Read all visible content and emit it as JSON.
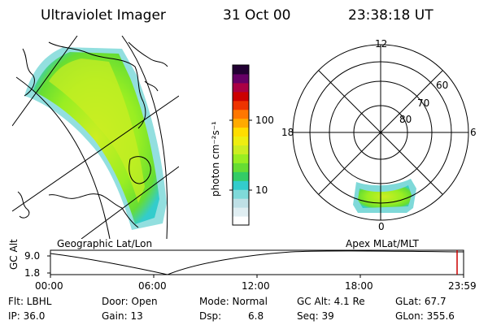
{
  "header": {
    "title": "Ultraviolet Imager",
    "date": "31 Oct 00",
    "time": "23:38:18 UT"
  },
  "colorbar": {
    "unit_label": "photon cm⁻²s⁻¹",
    "tick_high": "100",
    "tick_low": "10",
    "colors": [
      "#ffffff",
      "#e0eef2",
      "#bfe0e6",
      "#7fd9d9",
      "#33cccc",
      "#33cc66",
      "#66dd33",
      "#99ee22",
      "#ccee22",
      "#eeee11",
      "#ffdd00",
      "#ffaa00",
      "#ff7700",
      "#ee3300",
      "#cc0000",
      "#aa0044",
      "#660066",
      "#220033"
    ]
  },
  "geo_panel": {
    "label": "Geographic Lat/Lon"
  },
  "polar_panel": {
    "label": "Apex MLat/MLT",
    "mlt_labels": {
      "top": "12",
      "right": "6",
      "bottom": "0",
      "left": "18"
    },
    "lat_labels": [
      "60",
      "70",
      "80"
    ]
  },
  "timeline": {
    "ylabel": "GC Alt",
    "ytick_top": "9.0",
    "ytick_bottom": "1.8",
    "xticks": [
      "00:00",
      "06:00",
      "12:00",
      "18:00",
      "23:59"
    ],
    "marker_color": "#cc0000"
  },
  "info": {
    "filter": "Flt: LBHL",
    "door": "Door: Open",
    "mode": "Mode: Normal",
    "gc_alt": "GC Alt: 4.1 Re",
    "glat": "GLat: 67.7",
    "ip": "IP: 36.0",
    "gain": "Gain: 13",
    "dsp_label": "Dsp:",
    "dsp_value": "6.8",
    "seq": "Seq: 39",
    "glon": "GLon: 355.6"
  }
}
